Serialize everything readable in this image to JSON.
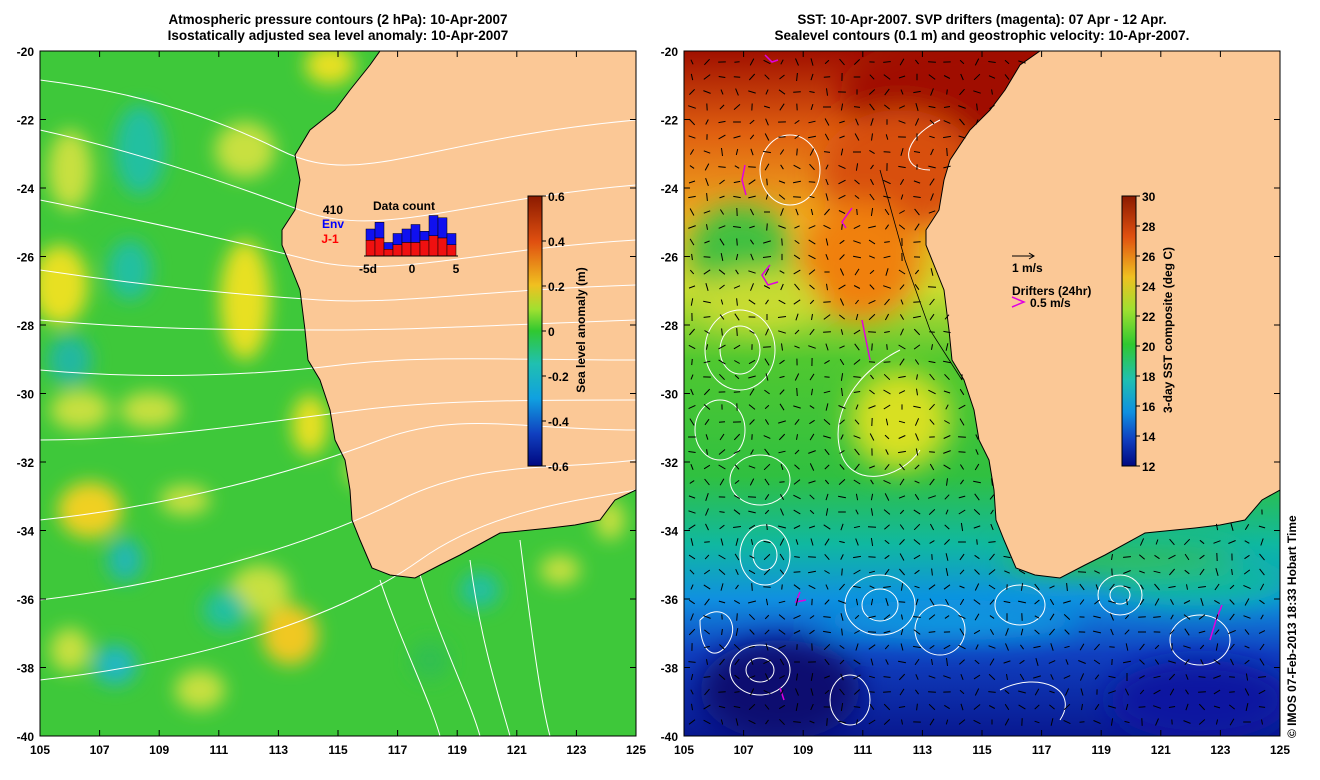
{
  "left_panel": {
    "title_line1": "Atmospheric pressure contours (2 hPa): 10-Apr-2007",
    "title_line2": "Isostatically adjusted sea level anomaly: 10-Apr-2007",
    "colorbar": {
      "label": "Sea level anomaly (m)",
      "ticks": [
        "0.6",
        "0.4",
        "0.2",
        "0",
        "-0.2",
        "-0.4",
        "-0.6"
      ]
    },
    "data_count": {
      "title": "Data count",
      "total": "410",
      "sat1": "Env",
      "sat2": "J-1",
      "x_ticks": [
        "-5d",
        "0",
        "5"
      ],
      "bars_blue": [
        0.6,
        0.75,
        0.3,
        0.5,
        0.6,
        0.7,
        0.55,
        0.9,
        0.85,
        0.5
      ],
      "bars_red": [
        0.35,
        0.4,
        0.15,
        0.25,
        0.3,
        0.3,
        0.35,
        0.45,
        0.4,
        0.25
      ]
    }
  },
  "right_panel": {
    "title_line1": "SST: 10-Apr-2007. SVP drifters (magenta): 07 Apr - 12 Apr.",
    "title_line2": "Sealevel contours (0.1 m) and geostrophic velocity: 10-Apr-2007.",
    "colorbar": {
      "label": "3-day SST composite (deg C)",
      "ticks": [
        "30",
        "28",
        "26",
        "24",
        "22",
        "20",
        "18",
        "16",
        "14",
        "12"
      ]
    },
    "velocity_scale": "1 m/s",
    "drifters_label": "Drifters (24hr)",
    "drifters_scale": "0.5 m/s"
  },
  "axes": {
    "lon_ticks": [
      "105",
      "107",
      "109",
      "111",
      "113",
      "115",
      "117",
      "119",
      "121",
      "123",
      "125"
    ],
    "lat_ticks": [
      "-20",
      "-22",
      "-24",
      "-26",
      "-28",
      "-30",
      "-32",
      "-34",
      "-36",
      "-38",
      "-40"
    ]
  },
  "credit": "© IMOS 07-Feb-2013 18:33 Hobart Time",
  "colors": {
    "land": "#fbc896",
    "slaBase": "#3cc83c",
    "arrow": "#000000",
    "drifter": "#e000e0"
  }
}
